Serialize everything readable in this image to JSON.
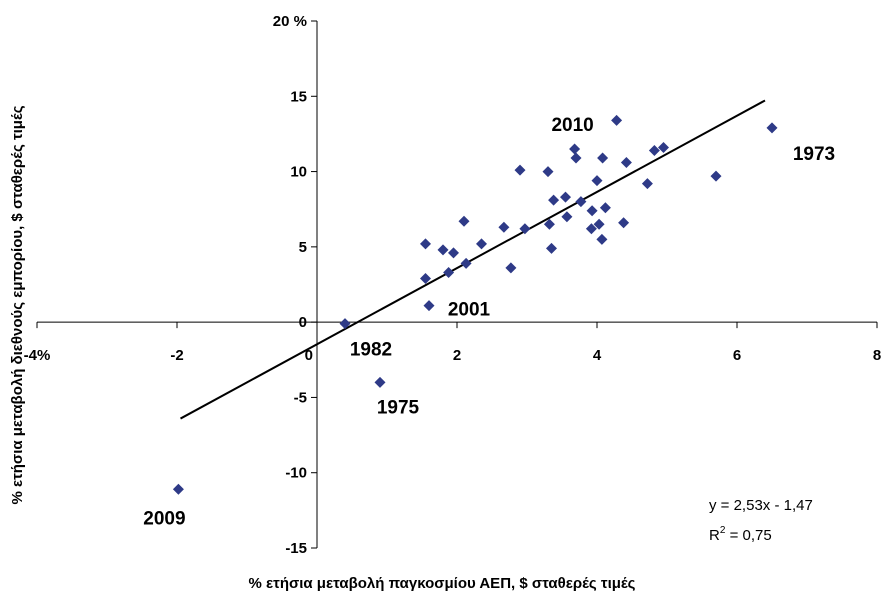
{
  "chart_data": {
    "type": "scatter",
    "title": "",
    "xlabel": "% ετήσια μεταβολή παγκοσμίου ΑΕΠ, $ σταθερές τιμές",
    "ylabel": "% ετήσια μεταβολή διεθνούς εμπορίου, $ σταθερές τιμές",
    "xlim": [
      -4,
      8
    ],
    "ylim": [
      -15,
      20
    ],
    "grid": false,
    "marker_color": "#2E3A87",
    "x_ticks": [
      {
        "value": -4,
        "label": "-4%"
      },
      {
        "value": -2,
        "label": "-2"
      },
      {
        "value": 0,
        "label": "0"
      },
      {
        "value": 2,
        "label": "2"
      },
      {
        "value": 4,
        "label": "4"
      },
      {
        "value": 6,
        "label": "6"
      },
      {
        "value": 8,
        "label": "8"
      }
    ],
    "y_ticks": [
      {
        "value": 20,
        "label": "20 %"
      },
      {
        "value": 15,
        "label": "15"
      },
      {
        "value": 10,
        "label": "10"
      },
      {
        "value": 5,
        "label": "5"
      },
      {
        "value": 0,
        "label": "0"
      },
      {
        "value": -5,
        "label": "-5"
      },
      {
        "value": -10,
        "label": "-10"
      },
      {
        "value": -15,
        "label": "-15"
      }
    ],
    "points": [
      {
        "x": -1.98,
        "y": -11.1
      },
      {
        "x": 0.4,
        "y": -0.1
      },
      {
        "x": 0.9,
        "y": -4.0
      },
      {
        "x": 1.55,
        "y": 5.2
      },
      {
        "x": 1.55,
        "y": 2.9
      },
      {
        "x": 1.6,
        "y": 1.1
      },
      {
        "x": 1.8,
        "y": 4.8
      },
      {
        "x": 1.88,
        "y": 3.3
      },
      {
        "x": 1.95,
        "y": 4.6
      },
      {
        "x": 2.1,
        "y": 6.7
      },
      {
        "x": 2.13,
        "y": 3.9
      },
      {
        "x": 2.35,
        "y": 5.2
      },
      {
        "x": 2.67,
        "y": 6.3
      },
      {
        "x": 2.77,
        "y": 3.6
      },
      {
        "x": 2.9,
        "y": 10.1
      },
      {
        "x": 2.97,
        "y": 6.2
      },
      {
        "x": 3.3,
        "y": 10.0
      },
      {
        "x": 3.32,
        "y": 6.5
      },
      {
        "x": 3.35,
        "y": 4.9
      },
      {
        "x": 3.38,
        "y": 8.1
      },
      {
        "x": 3.55,
        "y": 8.3
      },
      {
        "x": 3.57,
        "y": 7.0
      },
      {
        "x": 3.68,
        "y": 11.5
      },
      {
        "x": 3.7,
        "y": 10.9
      },
      {
        "x": 3.77,
        "y": 8.0
      },
      {
        "x": 3.92,
        "y": 6.2
      },
      {
        "x": 3.93,
        "y": 7.4
      },
      {
        "x": 4.0,
        "y": 9.4
      },
      {
        "x": 4.03,
        "y": 6.5
      },
      {
        "x": 4.07,
        "y": 5.5
      },
      {
        "x": 4.08,
        "y": 10.9
      },
      {
        "x": 4.12,
        "y": 7.6
      },
      {
        "x": 4.28,
        "y": 13.4
      },
      {
        "x": 4.38,
        "y": 6.6
      },
      {
        "x": 4.42,
        "y": 10.6
      },
      {
        "x": 4.72,
        "y": 9.2
      },
      {
        "x": 4.82,
        "y": 11.4
      },
      {
        "x": 4.95,
        "y": 11.6
      },
      {
        "x": 5.7,
        "y": 9.7
      },
      {
        "x": 6.5,
        "y": 12.9
      }
    ],
    "trendline": {
      "slope": 2.53,
      "intercept": -1.47,
      "x_start": -1.95,
      "x_end": 6.4
    },
    "annotations": [
      {
        "text": "1973",
        "x": 6.5,
        "y": 12.9
      },
      {
        "text": "2010",
        "x": 3.68,
        "y": 11.5
      },
      {
        "text": "2001",
        "x": 1.6,
        "y": 1.1
      },
      {
        "text": "1982",
        "x": 0.4,
        "y": -0.1
      },
      {
        "text": "1975",
        "x": 0.9,
        "y": -4.0
      },
      {
        "text": "2009",
        "x": -1.98,
        "y": -11.1
      }
    ],
    "equation": {
      "line1": "y = 2,53x - 1,47",
      "r2_main": "R",
      "r2_sup": "2",
      "r2_rest": " = 0,75"
    }
  }
}
